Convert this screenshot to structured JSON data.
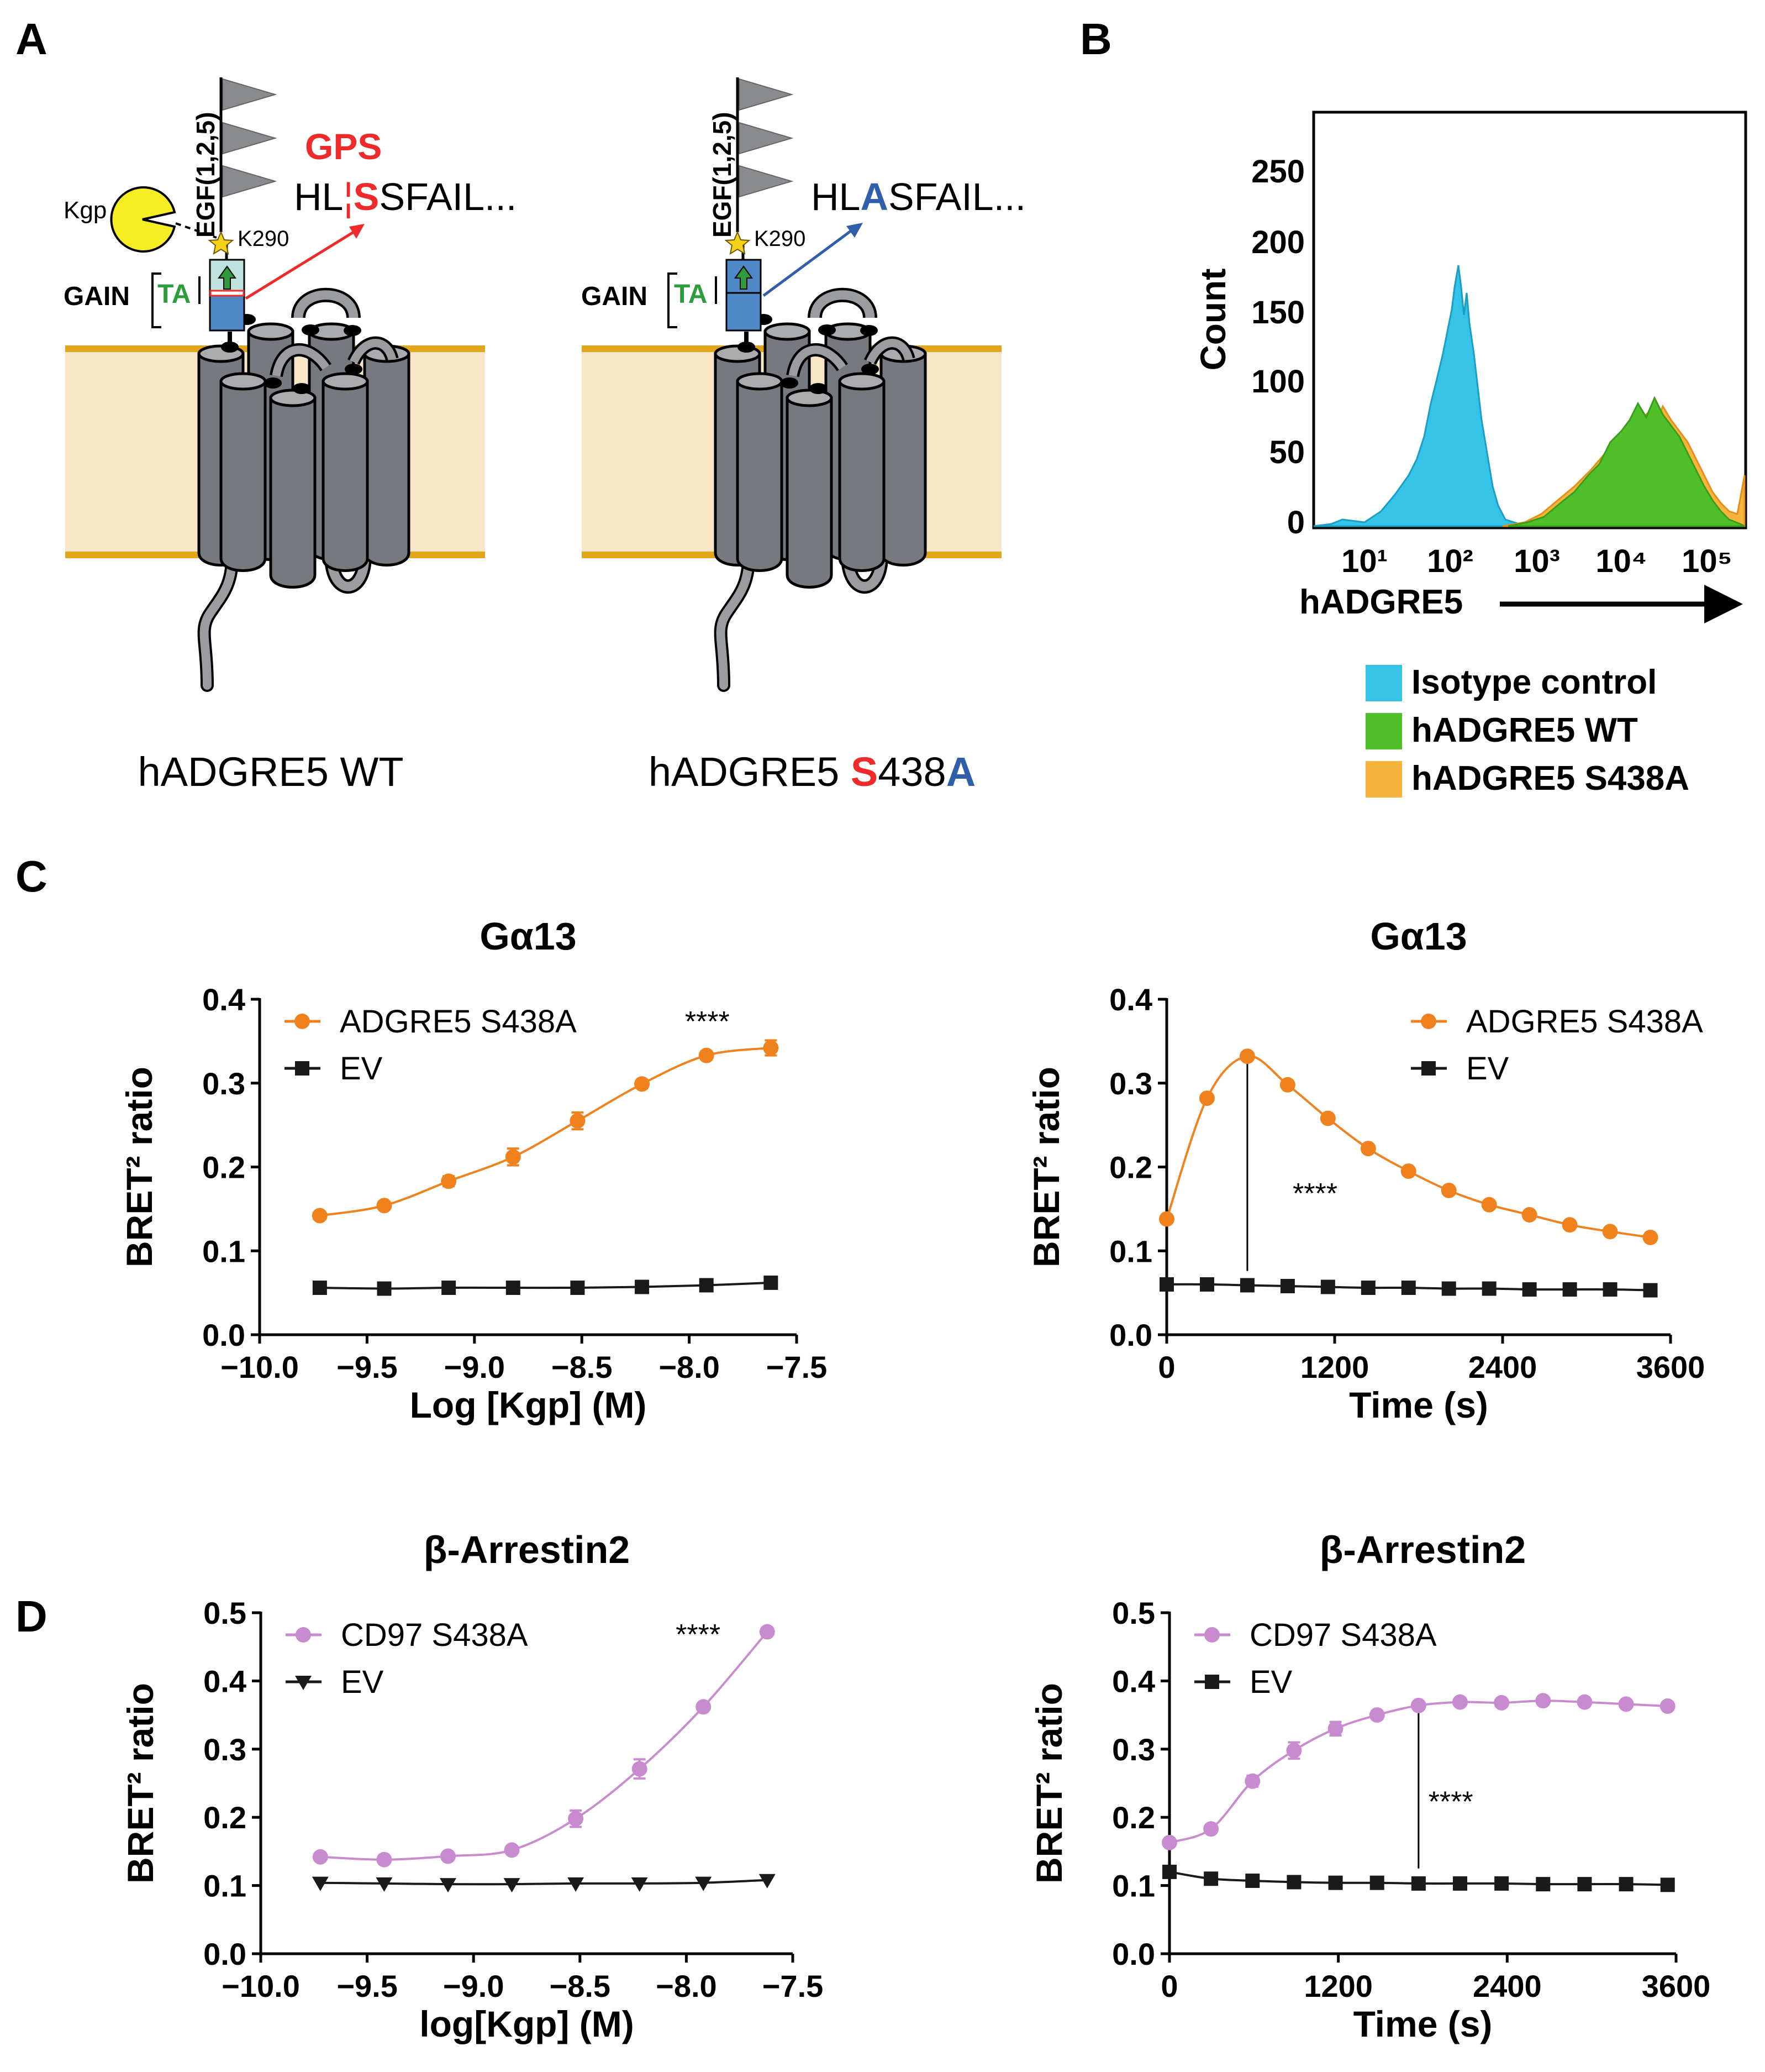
{
  "panel_labels": {
    "a": "A",
    "b": "B",
    "c": "C",
    "d": "D"
  },
  "colors": {
    "orange": "#f0821e",
    "pink": "#c98bd0",
    "black": "#1a1a1a",
    "isotype": "#35c3e8",
    "wt": "#4fbf2a",
    "mutant": "#f8b33a",
    "membrane": "#f9e6c9",
    "membrane_line": "#e3a51a",
    "receptor": "#7b7e83",
    "red": "#ee2a2a",
    "blue": "#2f5eab",
    "green": "#2c9c3c"
  },
  "schematic": {
    "egf_label": "EGF(1,2,5)",
    "kgp_label": "Kgp",
    "gps_label": "GPS",
    "k290_label": "K290",
    "gain_label": "GAIN",
    "ta_label": "TA",
    "wt_seq_prefix": "HL",
    "wt_seq_sep": "¦",
    "wt_seq_site": "S",
    "wt_seq_suffix": "SFAIL...",
    "mut_seq_prefix": "HL",
    "mut_seq_site": "A",
    "mut_seq_suffix": "SFAIL...",
    "wt_name": "hADGRE5 WT",
    "mut_name_prefix": "hADGRE5 ",
    "mut_name_s": "S",
    "mut_name_num": "438",
    "mut_name_a": "A"
  },
  "flow": {
    "ylabel": "Count",
    "xlabel": "hADGRE5",
    "yticks": [
      "0",
      "50",
      "100",
      "150",
      "200",
      "250"
    ],
    "xticks": [
      "10¹",
      "10²",
      "10³",
      "10⁴",
      "10⁵"
    ],
    "legend": [
      "Isotype control",
      "hADGRE5 WT",
      "hADGRE5 S438A"
    ]
  },
  "chart_data": [
    {
      "id": "c-left",
      "type": "line",
      "title": "Gα13",
      "xlabel": "Log [Kgp] (M)",
      "ylabel": "BRET² ratio",
      "xlim": [
        -10.0,
        -7.5
      ],
      "ylim": [
        0.0,
        0.4
      ],
      "xticks": [
        -10.0,
        -9.5,
        -9.0,
        -8.5,
        -8.0,
        -7.5
      ],
      "xtick_labels": [
        "−10.0",
        "−9.5",
        "−9.0",
        "−8.5",
        "−8.0",
        "−7.5"
      ],
      "yticks": [
        0.0,
        0.1,
        0.2,
        0.3,
        0.4
      ],
      "ytick_labels": [
        "0.0",
        "0.1",
        "0.2",
        "0.3",
        "0.4"
      ],
      "legend_position": "top-left",
      "series": [
        {
          "name": "ADGRE5 S438A",
          "marker": "circle",
          "color": "#f0821e",
          "x": [
            -9.72,
            -9.42,
            -9.12,
            -8.82,
            -8.52,
            -8.22,
            -7.92,
            -7.62
          ],
          "y": [
            0.142,
            0.154,
            0.183,
            0.212,
            0.255,
            0.299,
            0.333,
            0.342
          ],
          "err": [
            0.003,
            0.003,
            0.006,
            0.01,
            0.01,
            0.005,
            0.005,
            0.009
          ]
        },
        {
          "name": "EV",
          "marker": "square",
          "color": "#1a1a1a",
          "x": [
            -9.72,
            -9.42,
            -9.12,
            -8.82,
            -8.52,
            -8.22,
            -7.92,
            -7.62
          ],
          "y": [
            0.056,
            0.055,
            0.056,
            0.056,
            0.056,
            0.057,
            0.059,
            0.062
          ],
          "err": [
            0,
            0,
            0,
            0,
            0,
            0,
            0,
            0
          ]
        }
      ],
      "annotation": {
        "text": "****",
        "x": -8.02,
        "y": 0.375
      }
    },
    {
      "id": "c-right",
      "type": "line",
      "title": "Gα13",
      "xlabel": "Time (s)",
      "ylabel": "BRET² ratio",
      "xlim": [
        0,
        3600
      ],
      "ylim": [
        0.0,
        0.4
      ],
      "xticks": [
        0,
        1200,
        2400,
        3600
      ],
      "xtick_labels": [
        "0",
        "1200",
        "2400",
        "3600"
      ],
      "yticks": [
        0.0,
        0.1,
        0.2,
        0.3,
        0.4
      ],
      "ytick_labels": [
        "0.0",
        "0.1",
        "0.2",
        "0.3",
        "0.4"
      ],
      "legend_position": "top-right",
      "series": [
        {
          "name": "ADGRE5 S438A",
          "marker": "circle",
          "color": "#f0821e",
          "x": [
            0,
            288,
            576,
            864,
            1152,
            1440,
            1728,
            2016,
            2304,
            2592,
            2880,
            3168,
            3456
          ],
          "y": [
            0.138,
            0.282,
            0.332,
            0.298,
            0.258,
            0.222,
            0.195,
            0.172,
            0.155,
            0.143,
            0.131,
            0.123,
            0.116
          ],
          "err": [
            0,
            0,
            0,
            0,
            0,
            0,
            0,
            0,
            0,
            0,
            0,
            0,
            0
          ]
        },
        {
          "name": "EV",
          "marker": "square",
          "color": "#1a1a1a",
          "x": [
            0,
            288,
            576,
            864,
            1152,
            1440,
            1728,
            2016,
            2304,
            2592,
            2880,
            3168,
            3456
          ],
          "y": [
            0.06,
            0.06,
            0.059,
            0.058,
            0.057,
            0.056,
            0.056,
            0.055,
            0.055,
            0.054,
            0.054,
            0.054,
            0.053
          ],
          "err": [
            0,
            0,
            0,
            0,
            0,
            0,
            0,
            0,
            0,
            0,
            0,
            0,
            0
          ]
        }
      ],
      "annotation": {
        "text": "****",
        "x": 900,
        "y": 0.17
      },
      "marker_line": {
        "x": 576,
        "y_from": 0.076,
        "y_to": 0.325
      }
    },
    {
      "id": "d-left",
      "type": "line",
      "title": "β-Arrestin2",
      "xlabel": "log[Kgp] (M)",
      "ylabel": "BRET² ratio",
      "xlim": [
        -10.0,
        -7.5
      ],
      "ylim": [
        0.0,
        0.5
      ],
      "xticks": [
        -10.0,
        -9.5,
        -9.0,
        -8.5,
        -8.0,
        -7.5
      ],
      "xtick_labels": [
        "−10.0",
        "−9.5",
        "−9.0",
        "−8.5",
        "−8.0",
        "−7.5"
      ],
      "yticks": [
        0.0,
        0.1,
        0.2,
        0.3,
        0.4,
        0.5
      ],
      "ytick_labels": [
        "0.0",
        "0.1",
        "0.2",
        "0.3",
        "0.4",
        "0.5"
      ],
      "legend_position": "top-left",
      "series": [
        {
          "name": "CD97 S438A",
          "marker": "circle",
          "color": "#c98bd0",
          "x": [
            -9.72,
            -9.42,
            -9.12,
            -8.82,
            -8.52,
            -8.22,
            -7.92,
            -7.62
          ],
          "y": [
            0.142,
            0.138,
            0.143,
            0.152,
            0.198,
            0.271,
            0.362,
            0.472
          ],
          "err": [
            0.004,
            0.004,
            0.004,
            0.005,
            0.012,
            0.014,
            0.005,
            0.005
          ]
        },
        {
          "name": "EV",
          "marker": "triangle-down",
          "color": "#1a1a1a",
          "x": [
            -9.72,
            -9.42,
            -9.12,
            -8.82,
            -8.52,
            -8.22,
            -7.92,
            -7.62
          ],
          "y": [
            0.104,
            0.103,
            0.102,
            0.102,
            0.103,
            0.103,
            0.104,
            0.108
          ],
          "err": [
            0,
            0,
            0,
            0,
            0,
            0,
            0,
            0
          ]
        }
      ],
      "annotation": {
        "text": "****",
        "x": -8.05,
        "y": 0.47
      }
    },
    {
      "id": "d-right",
      "type": "line",
      "title": "β-Arrestin2",
      "xlabel": "Time (s)",
      "ylabel": "BRET² ratio",
      "xlim": [
        0,
        3600
      ],
      "ylim": [
        0.0,
        0.5
      ],
      "xticks": [
        0,
        1200,
        2400,
        3600
      ],
      "xtick_labels": [
        "0",
        "1200",
        "2400",
        "3600"
      ],
      "yticks": [
        0.0,
        0.1,
        0.2,
        0.3,
        0.4,
        0.5
      ],
      "ytick_labels": [
        "0.0",
        "0.1",
        "0.2",
        "0.3",
        "0.4",
        "0.5"
      ],
      "legend_position": "top-left",
      "series": [
        {
          "name": "CD97 S438A",
          "marker": "circle",
          "color": "#c98bd0",
          "x": [
            0,
            295,
            590,
            885,
            1180,
            1475,
            1770,
            2065,
            2360,
            2655,
            2950,
            3245,
            3540
          ],
          "y": [
            0.163,
            0.183,
            0.253,
            0.298,
            0.33,
            0.35,
            0.364,
            0.369,
            0.368,
            0.371,
            0.369,
            0.366,
            0.363
          ],
          "err": [
            0.005,
            0.005,
            0.008,
            0.012,
            0.01,
            0.006,
            0.004,
            0.003,
            0.003,
            0.003,
            0.003,
            0.003,
            0.003
          ]
        },
        {
          "name": "EV",
          "marker": "square",
          "color": "#1a1a1a",
          "x": [
            0,
            295,
            590,
            885,
            1180,
            1475,
            1770,
            2065,
            2360,
            2655,
            2950,
            3245,
            3540
          ],
          "y": [
            0.12,
            0.11,
            0.107,
            0.105,
            0.104,
            0.104,
            0.103,
            0.103,
            0.103,
            0.102,
            0.102,
            0.102,
            0.101
          ],
          "err": [
            0,
            0,
            0,
            0,
            0,
            0,
            0,
            0,
            0,
            0,
            0,
            0,
            0
          ]
        }
      ],
      "annotation": {
        "text": "****",
        "x": 1840,
        "y": 0.225
      },
      "marker_line": {
        "x": 1770,
        "y_from": 0.125,
        "y_to": 0.355
      }
    }
  ]
}
